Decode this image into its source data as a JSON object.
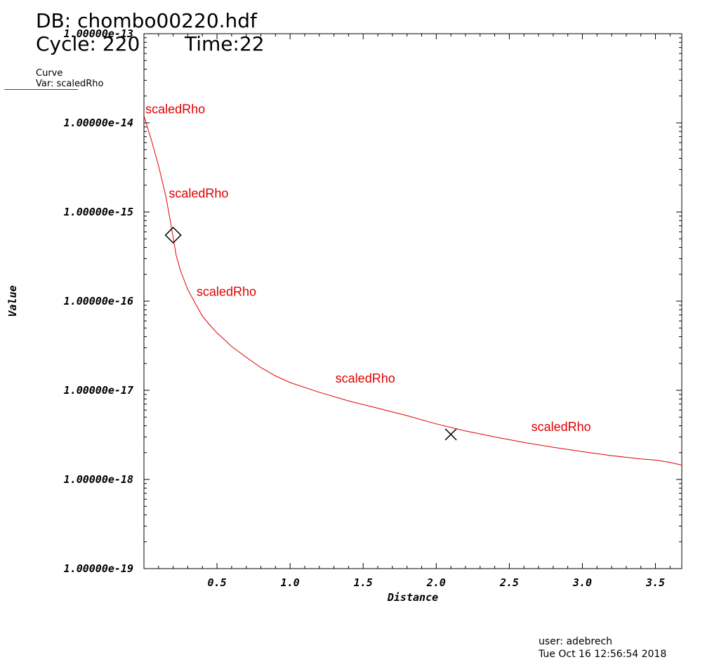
{
  "header": {
    "db_title": "DB: chombo00220.hdf",
    "cycle": "Cycle: 220",
    "time": "Time:22"
  },
  "legend": {
    "title": "Curve",
    "var": "Var: scaledRho"
  },
  "footer": {
    "user": "user: adebrech",
    "date": "Tue Oct 16 12:56:54 2018"
  },
  "colors": {
    "curve": "#e00000",
    "axis": "#000000",
    "background": "#ffffff"
  },
  "chart_data": {
    "type": "line",
    "xlabel": "Distance",
    "ylabel": "Value",
    "xlim": [
      0.0,
      3.68
    ],
    "ylim": [
      1e-19,
      1e-13
    ],
    "yscale": "log",
    "grid": false,
    "x_ticks": [
      "0.5",
      "1.0",
      "1.5",
      "2.0",
      "2.5",
      "3.0",
      "3.5"
    ],
    "y_ticks": [
      "1.00000e-13",
      "1.00000e-14",
      "1.00000e-15",
      "1.00000e-16",
      "1.00000e-17",
      "1.00000e-18",
      "1.00000e-19"
    ],
    "series": [
      {
        "name": "scaledRho",
        "x": [
          0.0,
          0.05,
          0.1,
          0.15,
          0.18,
          0.2,
          0.22,
          0.25,
          0.3,
          0.35,
          0.4,
          0.45,
          0.5,
          0.55,
          0.6,
          0.7,
          0.8,
          0.9,
          1.0,
          1.2,
          1.4,
          1.6,
          1.8,
          2.0,
          2.2,
          2.4,
          2.6,
          2.8,
          3.0,
          3.2,
          3.4,
          3.5,
          3.6,
          3.68
        ],
        "y": [
          1.2e-14,
          6.5e-15,
          3.3e-15,
          1.5e-15,
          8e-16,
          5.2e-16,
          3.3e-16,
          2.2e-16,
          1.35e-16,
          9.5e-17,
          6.8e-17,
          5.4e-17,
          4.4e-17,
          3.7e-17,
          3.1e-17,
          2.35e-17,
          1.8e-17,
          1.45e-17,
          1.22e-17,
          9.5e-18,
          7.6e-18,
          6.3e-18,
          5.2e-18,
          4.2e-18,
          3.5e-18,
          3e-18,
          2.6e-18,
          2.3e-18,
          2.05e-18,
          1.85e-18,
          1.7e-18,
          1.65e-18,
          1.55e-18,
          1.45e-18
        ]
      }
    ],
    "curve_labels": [
      {
        "text": "scaledRho",
        "x": 0.01,
        "y": 1.28e-14
      },
      {
        "text": "scaledRho",
        "x": 0.17,
        "y": 1.45e-15
      },
      {
        "text": "scaledRho",
        "x": 0.36,
        "y": 1.15e-16
      },
      {
        "text": "scaledRho",
        "x": 1.31,
        "y": 1.22e-17
      },
      {
        "text": "scaledRho",
        "x": 2.65,
        "y": 3.5e-18
      }
    ],
    "markers": [
      {
        "type": "diamond",
        "x": 0.2,
        "y": 5.5e-16
      },
      {
        "type": "x",
        "x": 2.1,
        "y": 3.2e-18
      }
    ]
  }
}
